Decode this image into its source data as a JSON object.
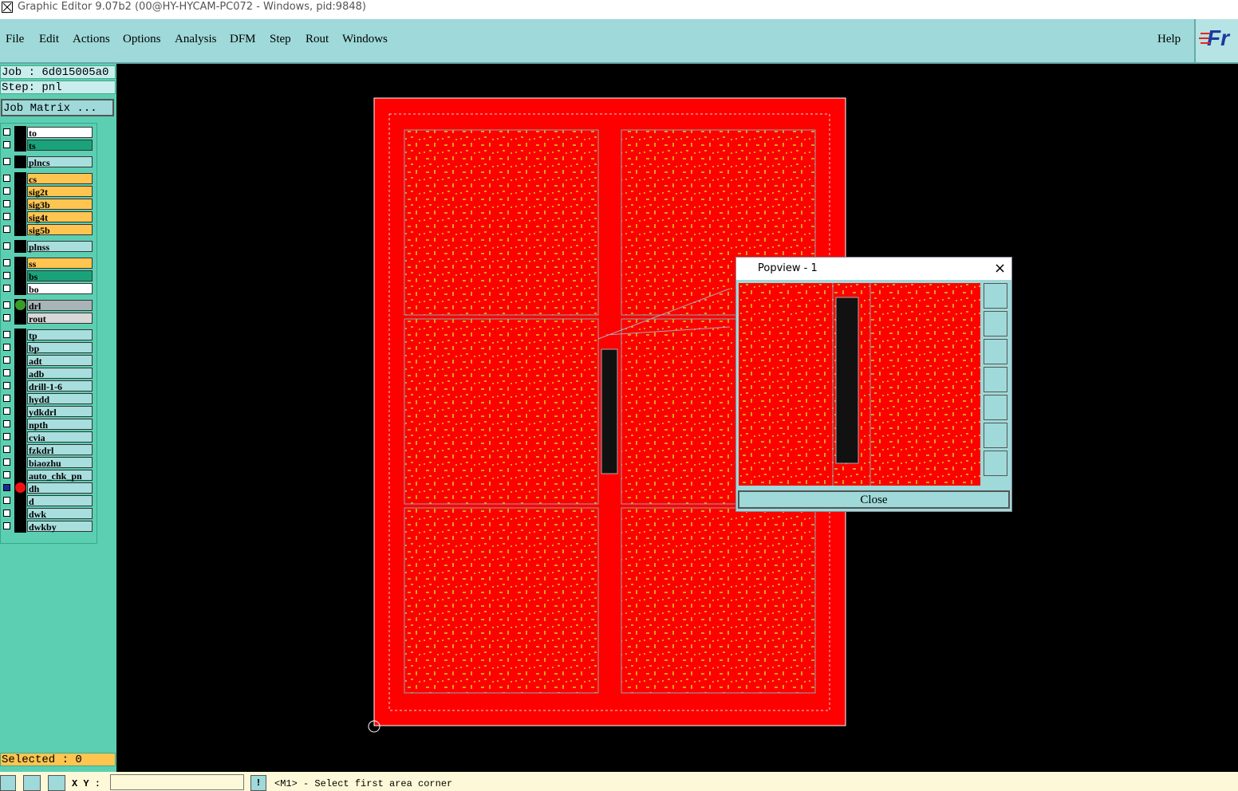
{
  "window": {
    "title": "Graphic Editor 9.07b2 (00@HY-HYCAM-PC072 - Windows, pid:9848)"
  },
  "menu": {
    "items": [
      "File",
      "Edit",
      "Actions",
      "Options",
      "Analysis",
      "DFM",
      "Step",
      "Rout",
      "Windows"
    ],
    "help": "Help",
    "logo": "Fr"
  },
  "job_panel": {
    "job": "Job : 6d015005a0",
    "step": "Step: pnl",
    "matrix_button": "Job Matrix ...",
    "selected": "Selected : 0"
  },
  "layer_groups": [
    [
      {
        "name": "to",
        "color": "#ffffff"
      },
      {
        "name": "ts",
        "color": "#1aa37a"
      }
    ],
    [
      {
        "name": "plncs",
        "color": "#a8dede"
      }
    ],
    [
      {
        "name": "cs",
        "color": "#ffc550"
      },
      {
        "name": "sig2t",
        "color": "#ffc550"
      },
      {
        "name": "sig3b",
        "color": "#ffc550"
      },
      {
        "name": "sig4t",
        "color": "#ffc550"
      },
      {
        "name": "sig5b",
        "color": "#ffc550"
      }
    ],
    [
      {
        "name": "plnss",
        "color": "#a8dede"
      }
    ],
    [
      {
        "name": "ss",
        "color": "#ffc550"
      },
      {
        "name": "bs",
        "color": "#1aa37a"
      },
      {
        "name": "bo",
        "color": "#ffffff"
      }
    ],
    [
      {
        "name": "drl",
        "color": "#a9b4b8",
        "dot": "#3a9a2a"
      },
      {
        "name": "rout",
        "color": "#d8d8d8"
      }
    ],
    [
      {
        "name": "tp",
        "color": "#a8dede"
      },
      {
        "name": "bp",
        "color": "#a8dede"
      },
      {
        "name": "adt",
        "color": "#a8dede"
      },
      {
        "name": "adb",
        "color": "#a8dede"
      },
      {
        "name": "drill-1-6",
        "color": "#a8dede"
      },
      {
        "name": "hydd",
        "color": "#a8dede"
      },
      {
        "name": "ydkdrl",
        "color": "#a8dede"
      },
      {
        "name": "npth",
        "color": "#a8dede"
      },
      {
        "name": "cvia",
        "color": "#a8dede"
      },
      {
        "name": "fzkdrl",
        "color": "#a8dede"
      },
      {
        "name": "biaozhu",
        "color": "#a8dede"
      },
      {
        "name": "auto_chk_pn",
        "color": "#a8dede"
      },
      {
        "name": "dh",
        "color": "#a8dede",
        "dot": "#ee1111",
        "active": true
      },
      {
        "name": "d",
        "color": "#a8dede"
      },
      {
        "name": "dwk",
        "color": "#a8dede"
      },
      {
        "name": "dwkby",
        "color": "#a8dede"
      }
    ]
  ],
  "popview": {
    "title": "Popview - 1",
    "close": "Close"
  },
  "status": {
    "xy_label": "X Y :",
    "bang": "!",
    "message": "<M1> - Select first area corner"
  }
}
